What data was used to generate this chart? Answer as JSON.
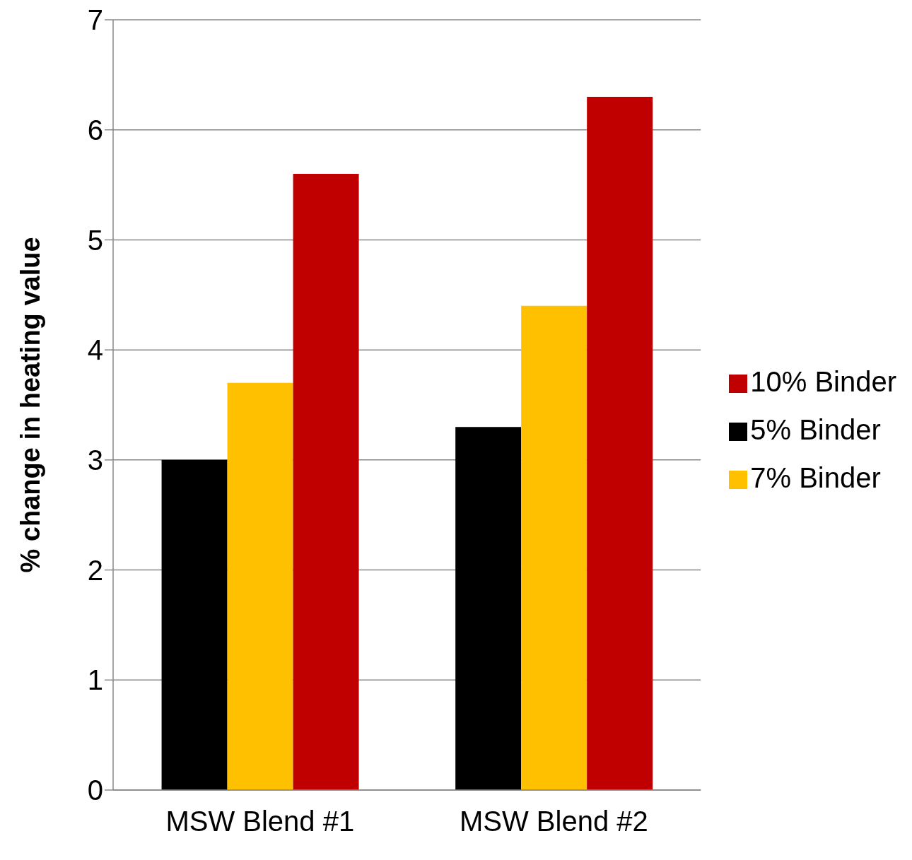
{
  "chart_data": {
    "type": "bar",
    "ylabel": "% change in heating value",
    "categories": [
      "MSW Blend #1",
      "MSW Blend #2"
    ],
    "series": [
      {
        "name": "5% Binder",
        "color": "#000000",
        "values": [
          3.0,
          3.3
        ]
      },
      {
        "name": "7% Binder",
        "color": "#ffc000",
        "values": [
          3.7,
          4.4
        ]
      },
      {
        "name": "10% Binder",
        "color": "#c00000",
        "values": [
          5.6,
          6.3
        ]
      }
    ],
    "ylim": [
      0,
      7
    ],
    "yticks": [
      0,
      1,
      2,
      3,
      4,
      5,
      6,
      7
    ],
    "grid": "y",
    "legend": "right"
  }
}
